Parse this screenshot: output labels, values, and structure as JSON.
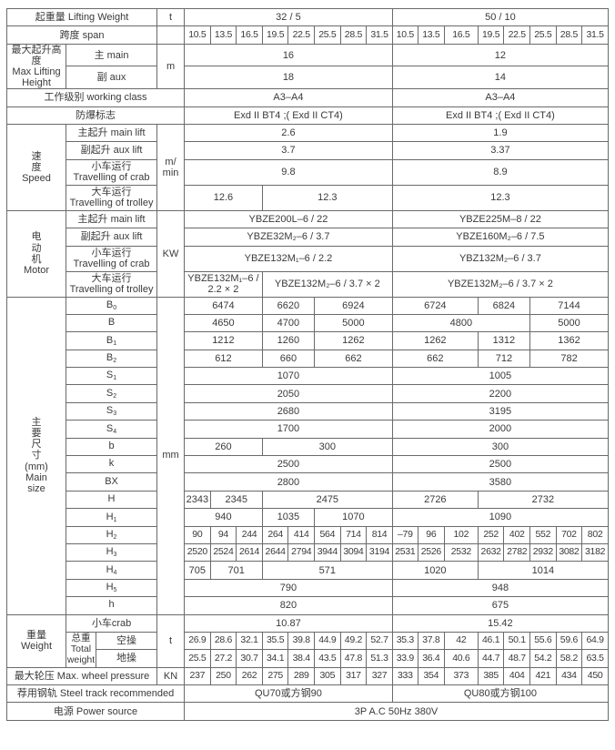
{
  "t": {
    "lifting_weight": {
      "label": "起重量 Lifting Weight",
      "unit": "t",
      "values": [
        "32 / 5",
        "50 / 10"
      ]
    },
    "span": {
      "label": "跨度 span",
      "unit": "",
      "values": [
        "10.5",
        "13.5",
        "16.5",
        "19.5",
        "22.5",
        "25.5",
        "28.5",
        "31.5",
        "10.5",
        "13.5",
        "16.5",
        "19.5",
        "22.5",
        "25.5",
        "28.5",
        "31.5"
      ]
    },
    "max_height": {
      "label": "最大起升高度\nMax Lifting\nHeight",
      "unit": "m",
      "main": {
        "label": "主 main",
        "values": [
          "16",
          "12"
        ]
      },
      "aux": {
        "label": "副 aux",
        "values": [
          "18",
          "14"
        ]
      }
    },
    "working_class": {
      "label": "工作级别 working class",
      "values": [
        "A3–A4",
        "A3–A4"
      ]
    },
    "explosion_mark": {
      "label": "防爆标志",
      "values": [
        "Exd II BT4 ;( Exd II CT4)",
        "Exd II BT4 ;( Exd II CT4)"
      ]
    },
    "speed": {
      "label": "速\n度\nSpeed",
      "unit": "m/\nmin",
      "rows": [
        {
          "label": "主起升  main lift",
          "values": [
            "2.6",
            "1.9"
          ]
        },
        {
          "label": "副起升 aux lift",
          "values": [
            "3.7",
            "3.37"
          ]
        },
        {
          "label": "小车运行\nTravelling of crab",
          "values": [
            "9.8",
            "8.9"
          ]
        },
        {
          "label": "大车运行\nTravelling of trolley",
          "values": [
            "12.6",
            "12.3",
            "12.3"
          ]
        }
      ]
    },
    "motor": {
      "label": "电\n动\n机\nMotor",
      "unit": "KW",
      "rows": [
        {
          "label": "主起升  main lift",
          "values": [
            "YBZE200L–6 / 22",
            "YBZE225M–8 / 22"
          ]
        },
        {
          "label": "副起升 aux lift",
          "values": [
            "YBZE32M₂–6 / 3.7",
            "YBZE160M₂–6 / 7.5"
          ]
        },
        {
          "label": "小车运行\nTravelling of crab",
          "values": [
            "YBZE132M₁–6 / 2.2",
            "YBZ132M₂–6 / 3.7"
          ]
        },
        {
          "label": "大车运行\nTravelling of trolley",
          "values": [
            "YBZE132M₁–6 /\n2.2 × 2",
            "YBZE132M₂–6 / 3.7 × 2",
            "YBZE132M₂–6 / 3.7 × 2"
          ]
        }
      ]
    },
    "main_size": {
      "label": "主\n要\n尺\n寸\n(mm)\nMain\nsize",
      "unit": "mm",
      "rows": [
        {
          "label": "B",
          "sub": "0",
          "values": [
            "6474",
            "6620",
            "6924",
            "6724",
            "6824",
            "7144"
          ]
        },
        {
          "label": "B",
          "sub": "",
          "values": [
            "4650",
            "4700",
            "5000",
            "4800",
            "5000"
          ]
        },
        {
          "label": "B",
          "sub": "1",
          "values": [
            "1212",
            "1260",
            "1262",
            "1262",
            "1312",
            "1362"
          ]
        },
        {
          "label": "B",
          "sub": "2",
          "values": [
            "612",
            "660",
            "662",
            "662",
            "712",
            "782"
          ]
        },
        {
          "label": "S",
          "sub": "1",
          "values": [
            "1070",
            "1005"
          ]
        },
        {
          "label": "S",
          "sub": "2",
          "values": [
            "2050",
            "2200"
          ]
        },
        {
          "label": "S",
          "sub": "3",
          "values": [
            "2680",
            "3195"
          ]
        },
        {
          "label": "S",
          "sub": "4",
          "values": [
            "1700",
            "2000"
          ]
        },
        {
          "label": "b",
          "sub": "",
          "values": [
            "260",
            "300",
            "300"
          ]
        },
        {
          "label": "k",
          "sub": "",
          "values": [
            "2500",
            "2500"
          ]
        },
        {
          "label": "BX",
          "sub": "",
          "values": [
            "2800",
            "3580"
          ]
        },
        {
          "label": "H",
          "sub": "",
          "values": [
            "2343",
            "2345",
            "2475",
            "2726",
            "2732"
          ]
        },
        {
          "label": "H",
          "sub": "1",
          "values": [
            "940",
            "1035",
            "1070",
            "1090"
          ]
        },
        {
          "label": "H",
          "sub": "2",
          "values": [
            "90",
            "94",
            "244",
            "264",
            "414",
            "564",
            "714",
            "814",
            "–79",
            "96",
            "102",
            "252",
            "402",
            "552",
            "702",
            "802"
          ]
        },
        {
          "label": "H",
          "sub": "3",
          "values": [
            "2520",
            "2524",
            "2614",
            "2644",
            "2794",
            "3944",
            "3094",
            "3194",
            "2531",
            "2526",
            "2532",
            "2632",
            "2782",
            "2932",
            "3082",
            "3182"
          ]
        },
        {
          "label": "H",
          "sub": "4",
          "values": [
            "705",
            "701",
            "571",
            "1020",
            "1014"
          ]
        },
        {
          "label": "H",
          "sub": "5",
          "values": [
            "790",
            "948"
          ]
        },
        {
          "label": "h",
          "sub": "",
          "values": [
            "820",
            "675"
          ]
        }
      ]
    },
    "weight": {
      "label": "重量\nWeight",
      "unit": "t",
      "crab": {
        "label": "小车crab",
        "values": [
          "10.87",
          "15.42"
        ]
      },
      "total_label": "总重\nTotal\nweight",
      "empty": {
        "label": "空操",
        "values": [
          "26.9",
          "28.6",
          "32.1",
          "35.5",
          "39.8",
          "44.9",
          "49.2",
          "52.7",
          "35.3",
          "37.8",
          "42",
          "46.1",
          "50.1",
          "55.6",
          "59.6",
          "64.9"
        ]
      },
      "ground": {
        "label": "地操",
        "values": [
          "25.5",
          "27.2",
          "30.7",
          "34.1",
          "38.4",
          "43.5",
          "47.8",
          "51.3",
          "33.9",
          "36.4",
          "40.6",
          "44.7",
          "48.7",
          "54.2",
          "58.2",
          "63.5"
        ]
      }
    },
    "wheel_pressure": {
      "label": "最大轮压 Max.  wheel pressure",
      "unit": "KN",
      "values": [
        "237",
        "250",
        "262",
        "275",
        "289",
        "305",
        "317",
        "327",
        "333",
        "354",
        "373",
        "385",
        "404",
        "421",
        "434",
        "450"
      ]
    },
    "steel_track": {
      "label": "荐用钢轨 Steel track recommended",
      "values": [
        "QU70或方钢90",
        "QU80或方钢100"
      ]
    },
    "power": {
      "label": "电源 Power source",
      "values": [
        "3P    A.C   50Hz    380V"
      ]
    }
  }
}
